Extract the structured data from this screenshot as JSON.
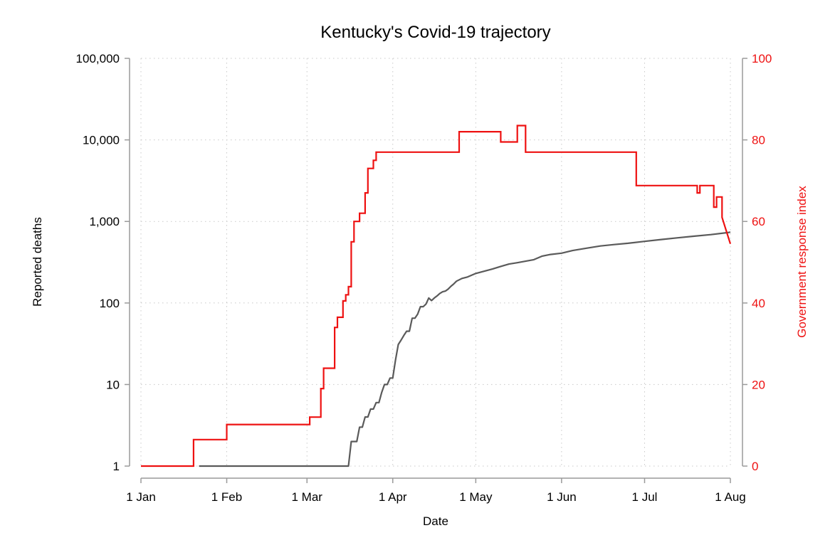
{
  "chart_data": {
    "type": "line",
    "title": "Kentucky's Covid-19 trajectory",
    "xlabel": "Date",
    "ylabel_left": "Reported deaths",
    "ylabel_right": "Government response index",
    "x_ticks": [
      {
        "date": "2020-01-01",
        "label": "1 Jan"
      },
      {
        "date": "2020-02-01",
        "label": "1 Feb"
      },
      {
        "date": "2020-03-01",
        "label": "1 Mar"
      },
      {
        "date": "2020-04-01",
        "label": "1 Apr"
      },
      {
        "date": "2020-05-01",
        "label": "1 May"
      },
      {
        "date": "2020-06-01",
        "label": "1 Jun"
      },
      {
        "date": "2020-07-01",
        "label": "1 Jul"
      },
      {
        "date": "2020-08-01",
        "label": "1 Aug"
      }
    ],
    "y_left": {
      "scale": "log",
      "range": [
        1,
        100000
      ],
      "ticks": [
        {
          "value": 1,
          "label": "1"
        },
        {
          "value": 10,
          "label": "10"
        },
        {
          "value": 100,
          "label": "100"
        },
        {
          "value": 1000,
          "label": "1,000"
        },
        {
          "value": 10000,
          "label": "10,000"
        },
        {
          "value": 100000,
          "label": "100,000"
        }
      ]
    },
    "y_right": {
      "scale": "linear",
      "range": [
        0,
        100
      ],
      "ticks": [
        {
          "value": 0,
          "label": "0"
        },
        {
          "value": 20,
          "label": "20"
        },
        {
          "value": 40,
          "label": "40"
        },
        {
          "value": 60,
          "label": "60"
        },
        {
          "value": 80,
          "label": "80"
        },
        {
          "value": 100,
          "label": "100"
        }
      ]
    },
    "grid": true,
    "series": [
      {
        "axis": "left",
        "color": "#5a5a5a",
        "points": [
          [
            "2020-01-22",
            1
          ],
          [
            "2020-03-16",
            1
          ],
          [
            "2020-03-17",
            2
          ],
          [
            "2020-03-19",
            2
          ],
          [
            "2020-03-20",
            3
          ],
          [
            "2020-03-21",
            3
          ],
          [
            "2020-03-22",
            4
          ],
          [
            "2020-03-23",
            4
          ],
          [
            "2020-03-24",
            5
          ],
          [
            "2020-03-25",
            5
          ],
          [
            "2020-03-26",
            6
          ],
          [
            "2020-03-27",
            6
          ],
          [
            "2020-03-28",
            8
          ],
          [
            "2020-03-29",
            10
          ],
          [
            "2020-03-30",
            10
          ],
          [
            "2020-03-31",
            12
          ],
          [
            "2020-04-01",
            12
          ],
          [
            "2020-04-02",
            20
          ],
          [
            "2020-04-03",
            31
          ],
          [
            "2020-04-04",
            35
          ],
          [
            "2020-04-05",
            40
          ],
          [
            "2020-04-06",
            45
          ],
          [
            "2020-04-07",
            45
          ],
          [
            "2020-04-08",
            65
          ],
          [
            "2020-04-09",
            65
          ],
          [
            "2020-04-10",
            73
          ],
          [
            "2020-04-11",
            90
          ],
          [
            "2020-04-12",
            90
          ],
          [
            "2020-04-13",
            97
          ],
          [
            "2020-04-14",
            115
          ],
          [
            "2020-04-15",
            107
          ],
          [
            "2020-04-16",
            115
          ],
          [
            "2020-04-17",
            122
          ],
          [
            "2020-04-18",
            131
          ],
          [
            "2020-04-19",
            137
          ],
          [
            "2020-04-20",
            140
          ],
          [
            "2020-04-21",
            148
          ],
          [
            "2020-04-22",
            160
          ],
          [
            "2020-04-23",
            171
          ],
          [
            "2020-04-24",
            185
          ],
          [
            "2020-04-26",
            200
          ],
          [
            "2020-04-28",
            208
          ],
          [
            "2020-05-01",
            230
          ],
          [
            "2020-05-04",
            245
          ],
          [
            "2020-05-07",
            261
          ],
          [
            "2020-05-10",
            281
          ],
          [
            "2020-05-13",
            300
          ],
          [
            "2020-05-16",
            312
          ],
          [
            "2020-05-19",
            325
          ],
          [
            "2020-05-22",
            340
          ],
          [
            "2020-05-25",
            376
          ],
          [
            "2020-05-28",
            394
          ],
          [
            "2020-06-01",
            408
          ],
          [
            "2020-06-05",
            440
          ],
          [
            "2020-06-10",
            470
          ],
          [
            "2020-06-15",
            500
          ],
          [
            "2020-06-20",
            520
          ],
          [
            "2020-06-25",
            540
          ],
          [
            "2020-07-01",
            570
          ],
          [
            "2020-07-07",
            600
          ],
          [
            "2020-07-13",
            630
          ],
          [
            "2020-07-19",
            660
          ],
          [
            "2020-07-25",
            690
          ],
          [
            "2020-07-31",
            730
          ],
          [
            "2020-08-01",
            740
          ]
        ]
      },
      {
        "axis": "right",
        "color": "#ee1111",
        "steps": [
          [
            "2020-01-01",
            0
          ],
          [
            "2020-01-20",
            6.5
          ],
          [
            "2020-02-01",
            10.2
          ],
          [
            "2020-03-02",
            12
          ],
          [
            "2020-03-06",
            19
          ],
          [
            "2020-03-07",
            24
          ],
          [
            "2020-03-11",
            34
          ],
          [
            "2020-03-12",
            36.5
          ],
          [
            "2020-03-14",
            40.5
          ],
          [
            "2020-03-15",
            42
          ],
          [
            "2020-03-16",
            44
          ],
          [
            "2020-03-17",
            55
          ],
          [
            "2020-03-18",
            60
          ],
          [
            "2020-03-20",
            62
          ],
          [
            "2020-03-22",
            67
          ],
          [
            "2020-03-23",
            73
          ],
          [
            "2020-03-25",
            75
          ],
          [
            "2020-03-26",
            77
          ],
          [
            "2020-04-25",
            82
          ],
          [
            "2020-05-10",
            79.5
          ],
          [
            "2020-05-16",
            83.5
          ],
          [
            "2020-05-19",
            77
          ],
          [
            "2020-06-28",
            68.8
          ],
          [
            "2020-07-20",
            67
          ],
          [
            "2020-07-21",
            68.8
          ],
          [
            "2020-07-26",
            63.5
          ],
          [
            "2020-07-27",
            66
          ],
          [
            "2020-07-29",
            61
          ]
        ],
        "end": [
          "2020-08-01",
          54.5
        ]
      }
    ]
  }
}
